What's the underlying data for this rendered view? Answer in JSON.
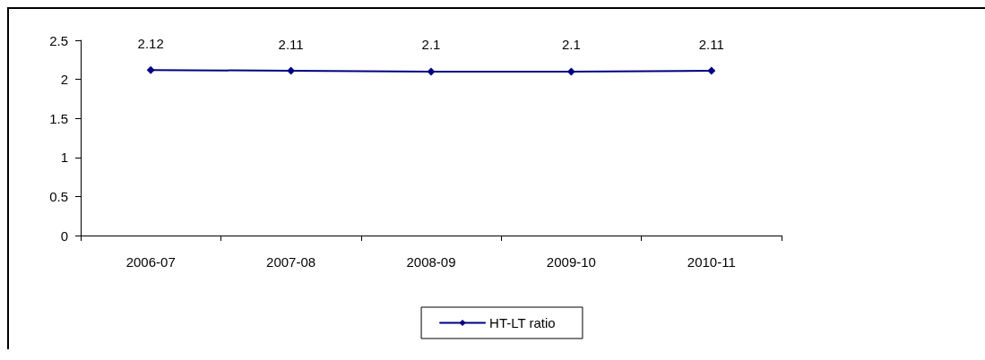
{
  "chart_data": {
    "type": "line",
    "categories": [
      "2006-07",
      "2007-08",
      "2008-09",
      "2009-10",
      "2010-11"
    ],
    "series": [
      {
        "name": "HT-LT ratio",
        "color": "#000080",
        "values": [
          2.12,
          2.11,
          2.1,
          2.1,
          2.11
        ]
      }
    ],
    "ylim": [
      0,
      2.5
    ],
    "yticks": [
      0,
      0.5,
      1,
      1.5,
      2,
      2.5
    ],
    "grid": false,
    "legend": "bottom",
    "marker": "diamond",
    "data_labels": true
  }
}
